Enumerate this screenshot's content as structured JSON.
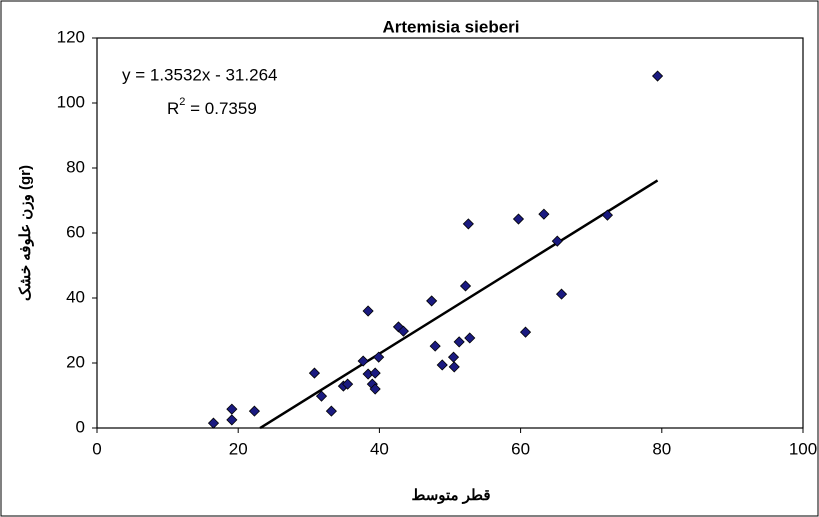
{
  "chart_data": {
    "type": "scatter",
    "title": "Artemisia sieberi",
    "x_label": "قطر متوسط",
    "y_label": "وزن علوفه خشک (gr)",
    "x": [
      16.5,
      19.1,
      19.1,
      22.3,
      30.8,
      31.8,
      33.2,
      34.9,
      35.5,
      37.7,
      38.4,
      38.4,
      39.0,
      39.4,
      39.4,
      39.9,
      42.7,
      43.4,
      47.4,
      47.9,
      48.9,
      50.5,
      50.6,
      51.3,
      52.2,
      52.8,
      52.6,
      59.7,
      60.7,
      63.3,
      65.2,
      65.8,
      72.3,
      79.4
    ],
    "values": [
      1.5,
      5.8,
      2.5,
      5.2,
      16.9,
      9.8,
      5.2,
      12.9,
      13.5,
      20.6,
      36.0,
      16.6,
      13.5,
      12.0,
      16.9,
      21.8,
      31.1,
      29.8,
      39.1,
      25.2,
      19.4,
      21.8,
      18.8,
      26.5,
      43.7,
      27.7,
      62.8,
      64.3,
      29.5,
      65.8,
      57.5,
      41.2,
      65.5,
      108.3
    ],
    "color": "#1a1a80",
    "xlim": [
      0,
      100
    ],
    "xticks": [
      0,
      20,
      40,
      60,
      80,
      100
    ],
    "ylim": [
      0,
      120
    ],
    "yticks": [
      0,
      20,
      40,
      60,
      80,
      100,
      120
    ],
    "grid": false,
    "trendline": {
      "slope": 1.3532,
      "intercept": -31.264,
      "x_range": [
        23.1,
        79.4
      ],
      "color": "#000000",
      "equation": "y = 1.3532x - 31.264",
      "r_squared": {
        "text": "R",
        "sup": "2",
        "value_text": " = 0.7359"
      }
    }
  }
}
